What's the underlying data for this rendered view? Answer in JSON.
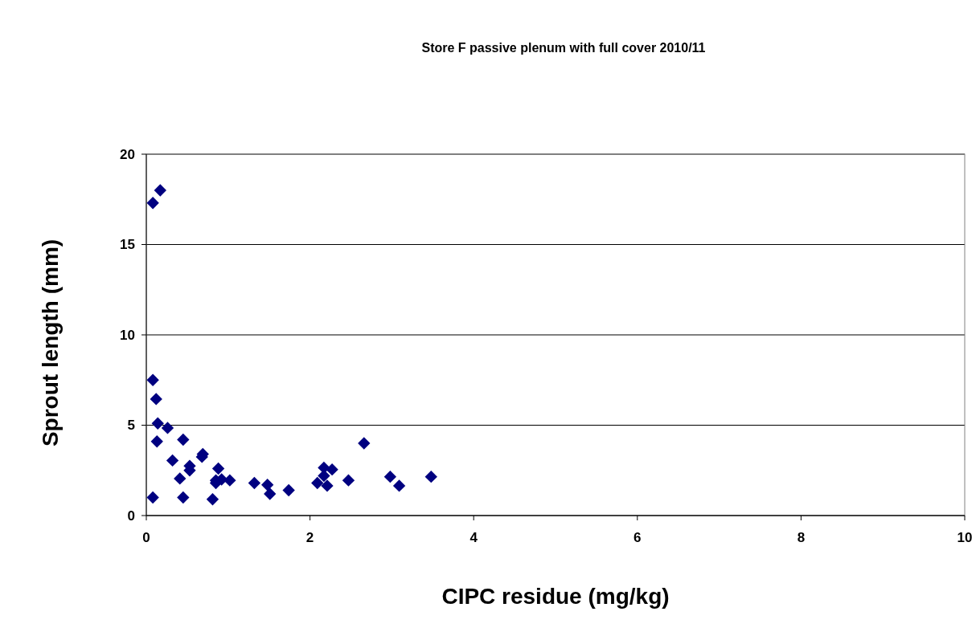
{
  "chart_data": {
    "type": "scatter",
    "title": "Store F passive plenum with full cover 2010/11",
    "xlabel": "CIPC residue (mg/kg)",
    "ylabel": "Sprout length (mm)",
    "x": [
      0.08,
      0.17,
      0.08,
      0.12,
      0.14,
      0.26,
      0.13,
      0.45,
      0.08,
      0.32,
      0.41,
      0.45,
      0.53,
      0.53,
      0.69,
      0.68,
      0.81,
      0.88,
      0.85,
      0.85,
      0.92,
      1.02,
      1.32,
      1.48,
      1.51,
      1.74,
      2.09,
      2.17,
      2.17,
      2.27,
      2.21,
      2.47,
      2.66,
      2.98,
      3.09,
      3.48
    ],
    "series": [
      {
        "color": "#000080",
        "values": [
          17.3,
          18.0,
          7.5,
          6.45,
          5.1,
          4.85,
          4.1,
          4.2,
          1.0,
          3.05,
          2.05,
          1.0,
          2.75,
          2.5,
          3.4,
          3.25,
          0.9,
          2.6,
          1.95,
          1.8,
          2.0,
          1.95,
          1.8,
          1.7,
          1.2,
          1.4,
          1.8,
          2.65,
          2.2,
          2.55,
          1.65,
          1.95,
          4.0,
          2.15,
          1.65,
          2.15
        ]
      }
    ],
    "xlim": [
      0,
      10
    ],
    "xticks": [
      0,
      2,
      4,
      6,
      8,
      10
    ],
    "ylim": [
      0,
      20
    ],
    "yticks": [
      0,
      5,
      10,
      15,
      20
    ],
    "grid": "y",
    "marker": "diamond"
  }
}
